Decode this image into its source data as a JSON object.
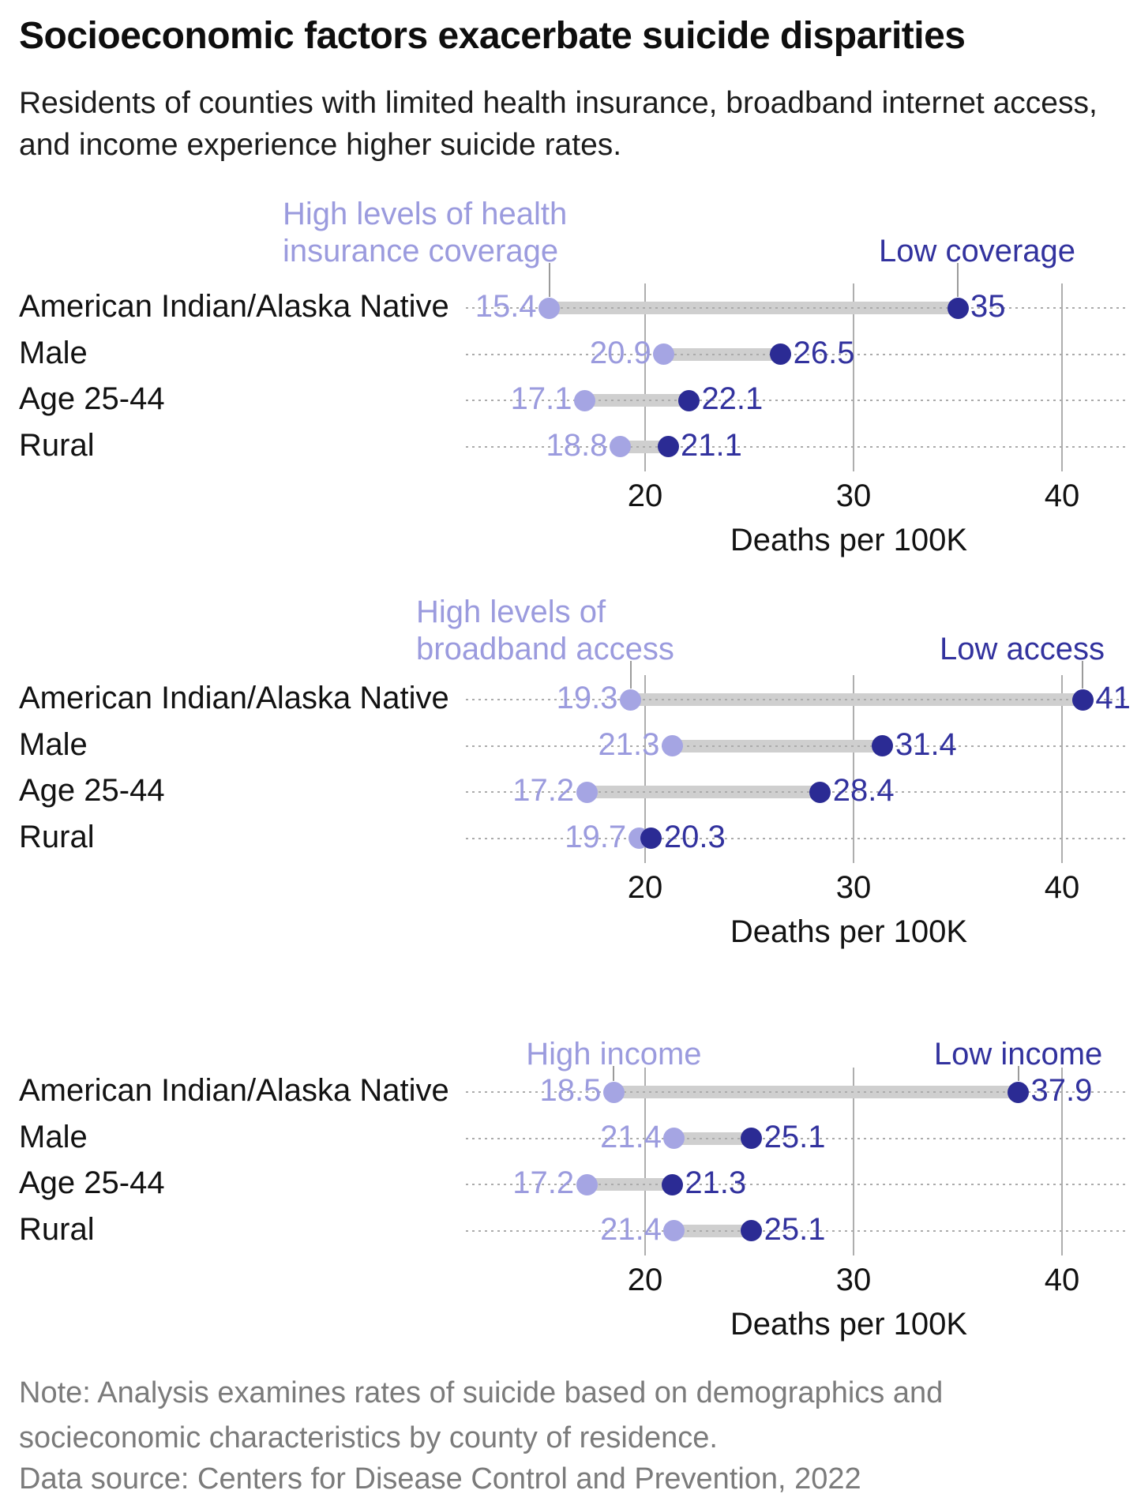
{
  "header": {
    "title": "Socioeconomic factors exacerbate suicide disparities",
    "subtitle": "Residents of counties with limited health insurance, broadband internet access, and income experience higher suicide rates."
  },
  "footer": {
    "note": "Note: Analysis examines rates of suicide based on demographics and socieconomic characteristics by county of residence.",
    "source": "Data source: Centers for Disease Control and Prevention, 2022"
  },
  "colors": {
    "high_dot": "#a5a5e3",
    "high_text": "#9b9bde",
    "low_dot": "#2b2b94",
    "low_text": "#32329e",
    "gridline": "#aeaeae",
    "dotted_line": "#ababab",
    "connector": "#cfcfcf",
    "leader_line": "#9b9b9b"
  },
  "chart_data": [
    {
      "type": "dumbbell",
      "title_high_lines": [
        "High levels of health",
        "insurance coverage"
      ],
      "title_low": "Low coverage",
      "categories": [
        "American Indian/Alaska Native",
        "Male",
        "Age 25-44",
        "Rural"
      ],
      "series": [
        {
          "name": "High levels of health insurance coverage",
          "values": [
            15.4,
            20.9,
            17.1,
            18.8
          ]
        },
        {
          "name": "Low coverage",
          "values": [
            35,
            26.5,
            22.1,
            21.1
          ]
        }
      ],
      "xlabel": "Deaths per 100K",
      "ticks": [
        20,
        30,
        40
      ],
      "xlim": [
        11.4,
        43
      ],
      "grid": true,
      "legend_position": "above-first-row"
    },
    {
      "type": "dumbbell",
      "title_high_lines": [
        "High levels of",
        "broadband access"
      ],
      "title_low": "Low access",
      "categories": [
        "American Indian/Alaska Native",
        "Male",
        "Age 25-44",
        "Rural"
      ],
      "series": [
        {
          "name": "High levels of broadband access",
          "values": [
            19.3,
            21.3,
            17.2,
            19.7
          ]
        },
        {
          "name": "Low access",
          "values": [
            41,
            31.4,
            28.4,
            20.3
          ]
        }
      ],
      "xlabel": "Deaths per 100K",
      "ticks": [
        20,
        30,
        40
      ],
      "xlim": [
        11.4,
        43
      ],
      "grid": true,
      "legend_position": "above-first-row"
    },
    {
      "type": "dumbbell",
      "title_high_lines": [
        "High income"
      ],
      "title_low": "Low income",
      "categories": [
        "American Indian/Alaska Native",
        "Male",
        "Age 25-44",
        "Rural"
      ],
      "series": [
        {
          "name": "High income",
          "values": [
            18.5,
            21.4,
            17.2,
            21.4
          ]
        },
        {
          "name": "Low income",
          "values": [
            37.9,
            25.1,
            21.3,
            25.1
          ]
        }
      ],
      "xlabel": "Deaths per 100K",
      "ticks": [
        20,
        30,
        40
      ],
      "xlim": [
        11.4,
        43
      ],
      "grid": true,
      "legend_position": "above-first-row"
    }
  ]
}
